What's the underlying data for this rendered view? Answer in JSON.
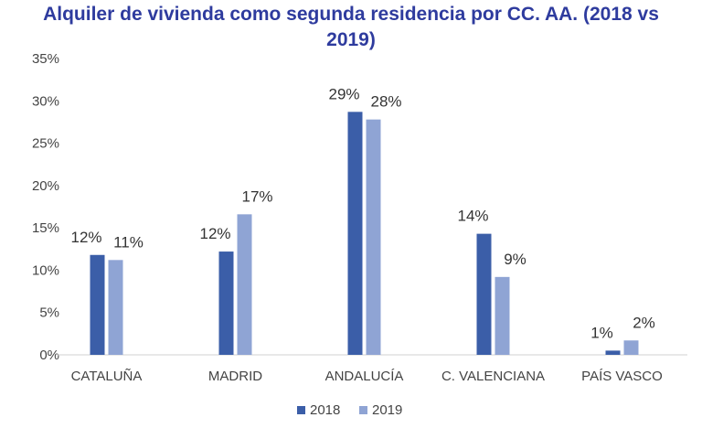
{
  "chart_data": {
    "type": "bar",
    "title": "Alquiler de vivienda como segunda residencia por CC. AA. (2018 vs 2019)",
    "title_lines": [
      "Alquiler de vivienda como segunda residencia por CC. AA. (2018 vs",
      "2019)"
    ],
    "categories": [
      "CATALUÑA",
      "MADRID",
      "ANDALUCÍA",
      "C. VALENCIANA",
      "PAÍS VASCO"
    ],
    "series": [
      {
        "name": "2018",
        "color": "#3b5ea8",
        "values": [
          11.8,
          12.2,
          28.7,
          14.3,
          0.5
        ],
        "labels": [
          "12%",
          "12%",
          "29%",
          "14%",
          "1%"
        ]
      },
      {
        "name": "2019",
        "color": "#8fa4d4",
        "values": [
          11.2,
          16.6,
          27.8,
          9.2,
          1.7
        ],
        "labels": [
          "11%",
          "17%",
          "28%",
          "9%",
          "2%"
        ]
      }
    ],
    "ylim": [
      0,
      35
    ],
    "yticks": [
      "0%",
      "5%",
      "10%",
      "15%",
      "20%",
      "25%",
      "30%",
      "35%"
    ],
    "xlabel": "",
    "ylabel": "",
    "grid": false,
    "legend": "bottom"
  }
}
